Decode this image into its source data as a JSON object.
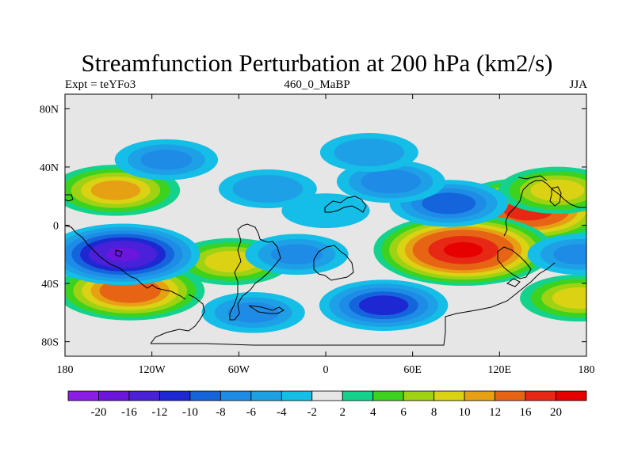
{
  "map": {
    "title": "Streamfunction Perturbation at 200 hPa (km2/s)",
    "subtitle_left": "Expt = teYFo3",
    "subtitle_center": "460_0_MaBP",
    "subtitle_right": "JJA",
    "lat_ticks": [
      "80N",
      "40N",
      "0",
      "40S",
      "80S"
    ],
    "lon_ticks": [
      "180",
      "120W",
      "60W",
      "0",
      "60E",
      "120E",
      "180"
    ],
    "background_color": "#e6e6e6"
  },
  "colorbar": {
    "labels": [
      "-20",
      "-16",
      "-12",
      "-10",
      "-8",
      "-6",
      "-4",
      "-2",
      "2",
      "4",
      "6",
      "8",
      "10",
      "12",
      "16",
      "20"
    ],
    "colors": [
      "#8a1ee6",
      "#6a16dc",
      "#4a20d8",
      "#1e28d2",
      "#1464dc",
      "#1e8ce6",
      "#1ea0e6",
      "#14bee6",
      "#e6e6e6",
      "#14d28c",
      "#3cd21e",
      "#a0d214",
      "#dcd214",
      "#e6a014",
      "#e66414",
      "#e62814",
      "#e60000"
    ]
  },
  "chart_data": {
    "type": "heatmap",
    "title": "Streamfunction Perturbation at 200 hPa (km2/s)",
    "levels": [
      -20,
      -16,
      -12,
      -10,
      -8,
      -6,
      -4,
      -2,
      2,
      4,
      6,
      8,
      10,
      12,
      16,
      20
    ],
    "xlim": [
      -180,
      180
    ],
    "ylim": [
      -90,
      90
    ],
    "features": [
      {
        "lon": 140,
        "lat": 10,
        "value": 18
      },
      {
        "lon": -135,
        "lat": -45,
        "value": 15
      },
      {
        "lon": -145,
        "lat": 24,
        "value": 11
      },
      {
        "lon": 160,
        "lat": 24,
        "value": 9
      },
      {
        "lon": 175,
        "lat": -50,
        "value": 9
      },
      {
        "lon": -65,
        "lat": -25,
        "value": 9
      },
      {
        "lon": 95,
        "lat": -17,
        "value": 21
      },
      {
        "lon": -140,
        "lat": -20,
        "value": -16
      },
      {
        "lon": 40,
        "lat": -55,
        "value": -11
      },
      {
        "lon": 85,
        "lat": 15,
        "value": -9
      },
      {
        "lon": 45,
        "lat": 30,
        "value": -7
      },
      {
        "lon": -110,
        "lat": 45,
        "value": -6
      },
      {
        "lon": 30,
        "lat": 50,
        "value": -5
      },
      {
        "lon": -20,
        "lat": -20,
        "value": -6
      },
      {
        "lon": -40,
        "lat": 25,
        "value": -5
      },
      {
        "lon": -50,
        "lat": -60,
        "value": -6
      },
      {
        "lon": 175,
        "lat": -20,
        "value": -6
      },
      {
        "lon": 0,
        "lat": 10,
        "value": -3
      }
    ]
  }
}
